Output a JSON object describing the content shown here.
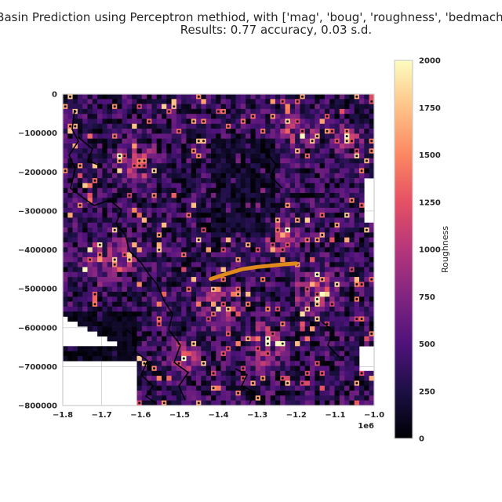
{
  "chart_data": {
    "type": "heatmap",
    "title_line1": "SE Basin Prediction using Perceptron methiod, with ['mag', 'boug', 'roughness', 'bedmachine'",
    "title_line2": "Results: 0.77 accuracy, 0.03 s.d.",
    "xlim": [
      -1800000,
      -1000000
    ],
    "ylim": [
      -800000,
      0
    ],
    "x_ticks": [
      -1800000,
      -1700000,
      -1600000,
      -1500000,
      -1400000,
      -1300000,
      -1200000,
      -1100000,
      -1000000
    ],
    "x_tick_labels": [
      "−1.8",
      "−1.7",
      "−1.6",
      "−1.5",
      "−1.4",
      "−1.3",
      "−1.2",
      "−1.1",
      "−1.0"
    ],
    "x_offset_label": "1e6",
    "y_ticks": [
      0,
      -100000,
      -200000,
      -300000,
      -400000,
      -500000,
      -600000,
      -700000,
      -800000
    ],
    "y_tick_labels": [
      "0",
      "−100000",
      "−200000",
      "−300000",
      "−400000",
      "−500000",
      "−600000",
      "−700000",
      "−800000"
    ],
    "grid": true,
    "colormap": "magma",
    "colorbar": {
      "label": "Roughness",
      "vmin": 0,
      "vmax": 2000,
      "ticks": [
        0,
        250,
        500,
        750,
        1000,
        1250,
        1500,
        1750,
        2000
      ],
      "tick_labels": [
        "0",
        "250",
        "500",
        "750",
        "1000",
        "1250",
        "1500",
        "1750",
        "2000"
      ]
    },
    "flight_line": {
      "color": "#e08a1e",
      "x": [
        -1420000,
        -1380000,
        -1340000,
        -1300000,
        -1260000,
        -1230000,
        -1200000
      ],
      "y": [
        -475000,
        -462000,
        -450000,
        -444000,
        -440000,
        -437000,
        -435000
      ]
    }
  }
}
